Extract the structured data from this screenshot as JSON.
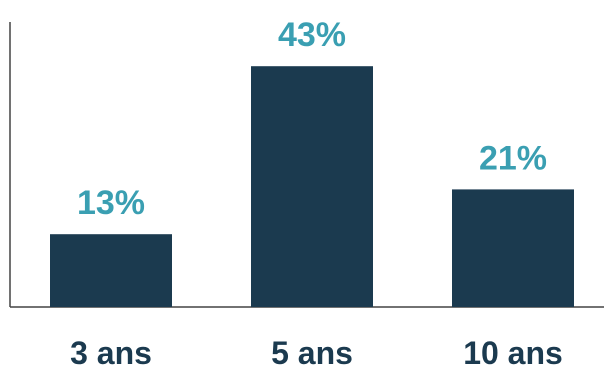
{
  "chart_data": {
    "type": "bar",
    "categories": [
      "3 ans",
      "5 ans",
      "10 ans"
    ],
    "values": [
      13,
      43,
      21
    ],
    "value_labels": [
      "13%",
      "43%",
      "21%"
    ],
    "ylim": [
      0,
      50
    ],
    "grid": false,
    "legend": "none",
    "colors": {
      "bar": "#1b3a4f",
      "value_label": "#3a9fb2",
      "category_label": "#1b3a4f",
      "axis": "#444444"
    }
  }
}
